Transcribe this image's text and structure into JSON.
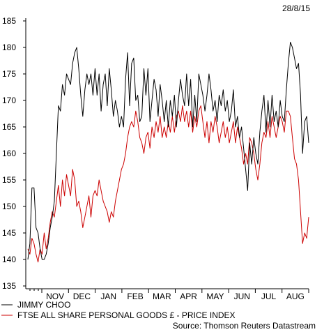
{
  "chart_data": {
    "type": "line",
    "date_label": "28/8/15",
    "source": "Source: Thomson Reuters Datastream",
    "ylim": [
      135,
      185
    ],
    "y_ticks": [
      135,
      140,
      145,
      150,
      155,
      160,
      165,
      170,
      175,
      180,
      185
    ],
    "x_month_labels": [
      "NOV",
      "DEC",
      "JAN",
      "FEB",
      "MAR",
      "APR",
      "MAY",
      "JUN",
      "JUL",
      "AUG"
    ],
    "series": [
      {
        "name": "JIMMY CHOO",
        "color": "#000000",
        "values": [
          [
            0,
            140
          ],
          [
            1,
            143
          ],
          [
            2,
            153.5
          ],
          [
            3,
            153.5
          ],
          [
            4,
            146
          ],
          [
            5,
            145
          ],
          [
            6,
            142
          ],
          [
            7,
            140
          ],
          [
            8,
            140
          ],
          [
            9,
            141
          ],
          [
            10,
            143
          ],
          [
            11,
            146
          ],
          [
            12,
            148
          ],
          [
            13,
            151
          ],
          [
            14,
            160
          ],
          [
            15,
            169
          ],
          [
            16,
            168
          ],
          [
            17,
            173
          ],
          [
            18,
            171
          ],
          [
            19,
            175
          ],
          [
            20,
            174
          ],
          [
            21,
            173
          ],
          [
            22,
            177
          ],
          [
            23,
            179
          ],
          [
            24,
            180
          ],
          [
            25,
            176
          ],
          [
            26,
            171
          ],
          [
            27,
            167
          ],
          [
            28,
            172
          ],
          [
            29,
            175
          ],
          [
            30,
            173
          ],
          [
            31,
            175
          ],
          [
            32,
            171
          ],
          [
            33,
            176
          ],
          [
            34,
            171
          ],
          [
            35,
            175
          ],
          [
            36,
            168
          ],
          [
            37,
            173
          ],
          [
            38,
            175
          ],
          [
            39,
            169
          ],
          [
            40,
            176
          ],
          [
            41,
            172
          ],
          [
            42,
            167
          ],
          [
            43,
            170
          ],
          [
            44,
            168
          ],
          [
            45,
            165
          ],
          [
            46,
            167
          ],
          [
            47,
            165
          ],
          [
            48,
            174
          ],
          [
            49,
            179
          ],
          [
            50,
            169
          ],
          [
            51,
            177
          ],
          [
            52,
            178
          ],
          [
            53,
            170
          ],
          [
            54,
            171
          ],
          [
            55,
            166
          ],
          [
            56,
            167
          ],
          [
            57,
            176
          ],
          [
            58,
            171
          ],
          [
            59,
            176
          ],
          [
            60,
            166
          ],
          [
            61,
            170
          ],
          [
            62,
            174
          ],
          [
            63,
            172
          ],
          [
            64,
            167
          ],
          [
            65,
            173
          ],
          [
            66,
            170
          ],
          [
            67,
            166
          ],
          [
            68,
            170
          ],
          [
            69,
            165
          ],
          [
            70,
            170
          ],
          [
            71,
            167
          ],
          [
            72,
            171
          ],
          [
            73,
            165
          ],
          [
            74,
            170
          ],
          [
            75,
            174
          ],
          [
            76,
            171
          ],
          [
            77,
            169
          ],
          [
            78,
            175
          ],
          [
            79,
            169
          ],
          [
            80,
            174
          ],
          [
            81,
            165
          ],
          [
            82,
            171
          ],
          [
            83,
            166
          ],
          [
            84,
            175
          ],
          [
            85,
            173
          ],
          [
            86,
            171
          ],
          [
            87,
            168
          ],
          [
            88,
            171
          ],
          [
            89,
            175
          ],
          [
            90,
            172
          ],
          [
            91,
            168
          ],
          [
            92,
            170
          ],
          [
            93,
            166
          ],
          [
            94,
            171
          ],
          [
            95,
            169
          ],
          [
            96,
            172
          ],
          [
            97,
            168
          ],
          [
            98,
            170
          ],
          [
            99,
            166
          ],
          [
            100,
            168
          ],
          [
            101,
            172
          ],
          [
            102,
            165
          ],
          [
            103,
            167
          ],
          [
            104,
            163
          ],
          [
            105,
            165
          ],
          [
            106,
            161
          ],
          [
            107,
            157
          ],
          [
            108,
            153
          ],
          [
            109,
            162
          ],
          [
            110,
            158
          ],
          [
            111,
            163
          ],
          [
            112,
            160
          ],
          [
            113,
            158
          ],
          [
            114,
            164
          ],
          [
            115,
            168
          ],
          [
            116,
            171
          ],
          [
            117,
            164
          ],
          [
            118,
            170
          ],
          [
            119,
            165
          ],
          [
            120,
            171
          ],
          [
            121,
            166
          ],
          [
            122,
            168
          ],
          [
            123,
            165
          ],
          [
            124,
            170
          ],
          [
            125,
            167
          ],
          [
            126,
            166
          ],
          [
            127,
            172
          ],
          [
            128,
            177
          ],
          [
            129,
            181
          ],
          [
            130,
            180
          ],
          [
            131,
            178
          ],
          [
            132,
            176
          ],
          [
            133,
            177
          ],
          [
            134,
            171
          ],
          [
            135,
            160
          ],
          [
            136,
            166
          ],
          [
            137,
            167
          ],
          [
            138,
            162
          ]
        ]
      },
      {
        "name": "FTSE ALL SHARE PERSONAL GOODS £ - PRICE INDEX",
        "color": "#cc0000",
        "values": [
          [
            0,
            142
          ],
          [
            1,
            141
          ],
          [
            2,
            144
          ],
          [
            3,
            143
          ],
          [
            4,
            141
          ],
          [
            5,
            139.5
          ],
          [
            6,
            142
          ],
          [
            7,
            141
          ],
          [
            8,
            145
          ],
          [
            9,
            142
          ],
          [
            10,
            144
          ],
          [
            11,
            147
          ],
          [
            12,
            149
          ],
          [
            13,
            148
          ],
          [
            14,
            151
          ],
          [
            15,
            154
          ],
          [
            16,
            150
          ],
          [
            17,
            155
          ],
          [
            18,
            152
          ],
          [
            19,
            156
          ],
          [
            20,
            154
          ],
          [
            21,
            152
          ],
          [
            22,
            157
          ],
          [
            23,
            155
          ],
          [
            24,
            150
          ],
          [
            25,
            151
          ],
          [
            26,
            149
          ],
          [
            27,
            146
          ],
          [
            28,
            148
          ],
          [
            29,
            150
          ],
          [
            30,
            152
          ],
          [
            31,
            148
          ],
          [
            32,
            152
          ],
          [
            33,
            153
          ],
          [
            34,
            152
          ],
          [
            35,
            155
          ],
          [
            36,
            153
          ],
          [
            37,
            151
          ],
          [
            38,
            150
          ],
          [
            39,
            149
          ],
          [
            40,
            147
          ],
          [
            41,
            149
          ],
          [
            42,
            148
          ],
          [
            43,
            151
          ],
          [
            44,
            153
          ],
          [
            45,
            155
          ],
          [
            46,
            157
          ],
          [
            47,
            158
          ],
          [
            48,
            160
          ],
          [
            49,
            163
          ],
          [
            50,
            165
          ],
          [
            51,
            166
          ],
          [
            52,
            165
          ],
          [
            53,
            168
          ],
          [
            54,
            166
          ],
          [
            55,
            163
          ],
          [
            56,
            162
          ],
          [
            57,
            160
          ],
          [
            58,
            163
          ],
          [
            59,
            164
          ],
          [
            60,
            161
          ],
          [
            61,
            165
          ],
          [
            62,
            163
          ],
          [
            63,
            166
          ],
          [
            64,
            164
          ],
          [
            65,
            167
          ],
          [
            66,
            163
          ],
          [
            67,
            165
          ],
          [
            68,
            163
          ],
          [
            69,
            166
          ],
          [
            70,
            164
          ],
          [
            71,
            167
          ],
          [
            72,
            164
          ],
          [
            73,
            167
          ],
          [
            74,
            168
          ],
          [
            75,
            166
          ],
          [
            76,
            169
          ],
          [
            77,
            166
          ],
          [
            78,
            168
          ],
          [
            79,
            165
          ],
          [
            80,
            168
          ],
          [
            81,
            164
          ],
          [
            82,
            167
          ],
          [
            83,
            165
          ],
          [
            84,
            168
          ],
          [
            85,
            169
          ],
          [
            86,
            166
          ],
          [
            87,
            163
          ],
          [
            88,
            166
          ],
          [
            89,
            162
          ],
          [
            90,
            166
          ],
          [
            91,
            164
          ],
          [
            92,
            167
          ],
          [
            93,
            165
          ],
          [
            94,
            162
          ],
          [
            95,
            164
          ],
          [
            96,
            166
          ],
          [
            97,
            163
          ],
          [
            98,
            165
          ],
          [
            99,
            162
          ],
          [
            100,
            164
          ],
          [
            101,
            166
          ],
          [
            102,
            162
          ],
          [
            103,
            165
          ],
          [
            104,
            163
          ],
          [
            105,
            161
          ],
          [
            106,
            158
          ],
          [
            107,
            160
          ],
          [
            108,
            158
          ],
          [
            109,
            163
          ],
          [
            110,
            162
          ],
          [
            111,
            160
          ],
          [
            112,
            157
          ],
          [
            113,
            155
          ],
          [
            114,
            158
          ],
          [
            115,
            162
          ],
          [
            116,
            164
          ],
          [
            117,
            163
          ],
          [
            118,
            166
          ],
          [
            119,
            163
          ],
          [
            120,
            167
          ],
          [
            121,
            165
          ],
          [
            122,
            163
          ],
          [
            123,
            165
          ],
          [
            124,
            167
          ],
          [
            125,
            166
          ],
          [
            126,
            164
          ],
          [
            127,
            168
          ],
          [
            128,
            168
          ],
          [
            129,
            167
          ],
          [
            130,
            163
          ],
          [
            131,
            159
          ],
          [
            132,
            158
          ],
          [
            133,
            155
          ],
          [
            134,
            149
          ],
          [
            135,
            143
          ],
          [
            136,
            145
          ],
          [
            137,
            144
          ],
          [
            138,
            148
          ]
        ]
      }
    ]
  }
}
